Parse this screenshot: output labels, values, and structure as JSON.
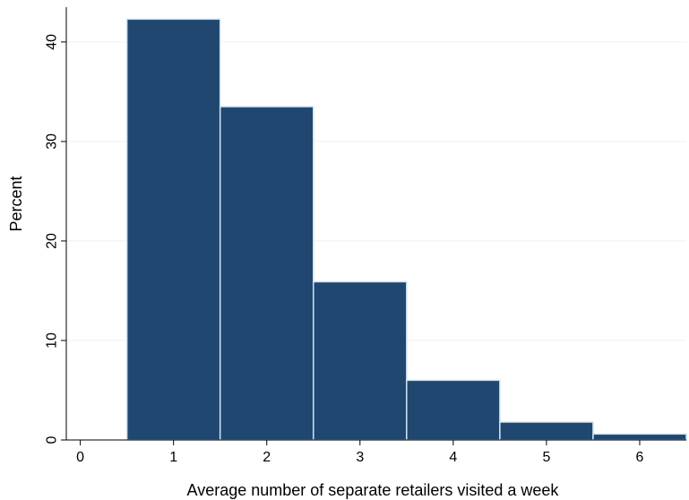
{
  "chart_data": {
    "type": "bar",
    "title": "",
    "xlabel": "Average number of separate retailers visited a week",
    "ylabel": "Percent",
    "categories": [
      "1",
      "2",
      "3",
      "4",
      "5",
      "6"
    ],
    "x": [
      1,
      2,
      3,
      4,
      5,
      6
    ],
    "values": [
      42.3,
      33.5,
      15.9,
      6.0,
      1.8,
      0.6
    ],
    "bar_width": 1,
    "xlim": [
      -0.15,
      6.5
    ],
    "ylim": [
      0,
      43.5
    ],
    "xticks": [
      0,
      1,
      2,
      3,
      4,
      5,
      6
    ],
    "yticks": [
      0,
      10,
      20,
      30,
      40
    ],
    "grid": true,
    "colors": {
      "bar_fill": "#1f4770",
      "bar_edge": "#cfe3f2",
      "grid": "#eef1f3",
      "axis": "#000000"
    }
  }
}
